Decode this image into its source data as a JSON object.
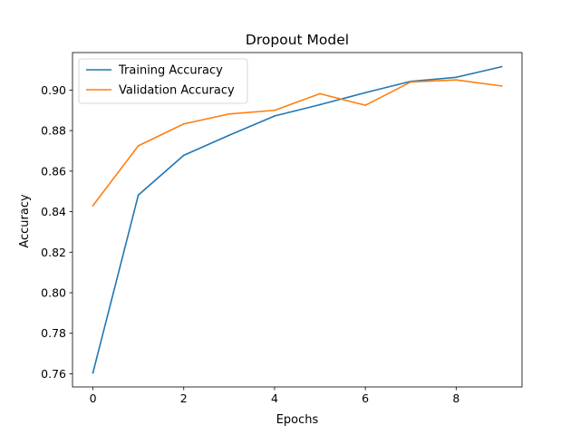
{
  "chart_data": {
    "type": "line",
    "title": "Dropout Model",
    "xlabel": "Epochs",
    "ylabel": "Accuracy",
    "x": [
      0,
      1,
      2,
      3,
      4,
      5,
      6,
      7,
      8,
      9
    ],
    "xlim": [
      -0.45,
      9.45
    ],
    "ylim": [
      0.7535,
      0.9185
    ],
    "xticks": [
      0,
      2,
      4,
      6,
      8
    ],
    "xtick_labels": [
      "0",
      "2",
      "4",
      "6",
      "8"
    ],
    "yticks": [
      0.76,
      0.78,
      0.8,
      0.82,
      0.84,
      0.86,
      0.88,
      0.9
    ],
    "ytick_labels": [
      "0.76",
      "0.78",
      "0.80",
      "0.82",
      "0.84",
      "0.86",
      "0.88",
      "0.90"
    ],
    "grid": false,
    "legend_position": "upper-left",
    "series": [
      {
        "name": "Training Accuracy",
        "color": "#1f77b4",
        "values": [
          0.7605,
          0.8482,
          0.8678,
          0.8777,
          0.8872,
          0.8928,
          0.8987,
          0.9043,
          0.9063,
          0.9115
        ]
      },
      {
        "name": "Validation Accuracy",
        "color": "#ff7f0e",
        "values": [
          0.843,
          0.8725,
          0.8833,
          0.8882,
          0.89,
          0.8982,
          0.8925,
          0.904,
          0.905,
          0.902
        ]
      }
    ]
  }
}
